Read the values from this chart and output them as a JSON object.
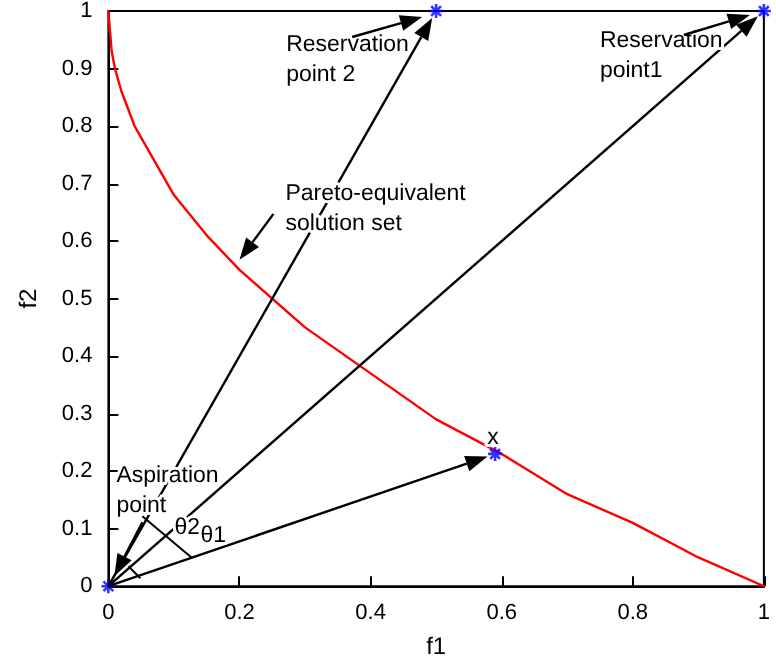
{
  "chart_data": {
    "type": "line",
    "xlabel": "f1",
    "ylabel": "f2",
    "xlim": [
      0,
      1
    ],
    "ylim": [
      0,
      1
    ],
    "xticks": [
      0,
      0.2,
      0.4,
      0.6,
      0.8,
      1
    ],
    "yticks": [
      0,
      0.1,
      0.2,
      0.3,
      0.4,
      0.5,
      0.6,
      0.7,
      0.8,
      0.9,
      1
    ],
    "grid": false,
    "line_style": "solid",
    "series": [
      {
        "color": "#ff0000",
        "marker": "none",
        "x": [
          0,
          0.005,
          0.01,
          0.02,
          0.04,
          0.07,
          0.1,
          0.15,
          0.2,
          0.3,
          0.4,
          0.5,
          0.6,
          0.7,
          0.8,
          0.9,
          1
        ],
        "values": [
          1,
          0.93,
          0.9,
          0.86,
          0.8,
          0.74,
          0.68,
          0.61,
          0.55,
          0.45,
          0.37,
          0.29,
          0.23,
          0.16,
          0.11,
          0.05,
          0
        ]
      },
      {
        "type": "scatter",
        "color": "#0000ff",
        "marker": "cross",
        "x": [
          0,
          0.59,
          0.5,
          1
        ],
        "values": [
          0,
          0.23,
          1,
          1
        ]
      }
    ],
    "annotations": [
      {
        "text": "Reservation point 2",
        "x": 0.5,
        "y": 1
      },
      {
        "text": "Reservation point1",
        "x": 1,
        "y": 1
      },
      {
        "text": "Pareto-equivalent solution set",
        "x": 0.2,
        "y": 0.55
      },
      {
        "text": "x",
        "x": 0.59,
        "y": 0.23
      },
      "Aspiration point",
      "θ2",
      "θ1"
    ]
  }
}
